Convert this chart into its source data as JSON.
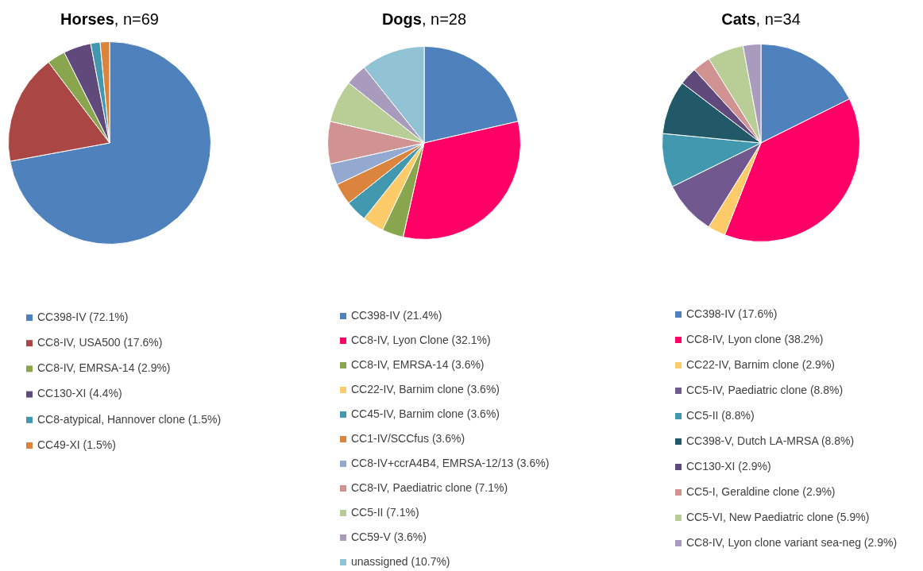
{
  "chart_data": [
    {
      "type": "pie",
      "title": "Horses, n=69",
      "categories": [
        "CC398-IV (72.1%)",
        "CC8-IV, USA500 (17.6%)",
        "CC8-IV, EMRSA-14 (2.9%)",
        "CC130-XI (4.4%)",
        "CC8-atypical, Hannover clone (1.5%)",
        "CC49-XI (1.5%)"
      ],
      "values": [
        72.1,
        17.6,
        2.9,
        4.4,
        1.5,
        1.5
      ],
      "colors": [
        "#4f81bd",
        "#aa4643",
        "#89a54e",
        "#604a7b",
        "#4198af",
        "#db843d"
      ],
      "legend": "bottom"
    },
    {
      "type": "pie",
      "title": "Dogs, n=28",
      "categories": [
        "CC398-IV (21.4%)",
        "CC8-IV, Lyon Clone (32.1%)",
        "CC8-IV, EMRSA-14 (3.6%)",
        "CC22-IV, Barnim clone (3.6%)",
        "CC45-IV, Barnim clone (3.6%)",
        "CC1-IV/SCCfus (3.6%)",
        "CC8-IV+ccrA4B4, EMRSA-12/13 (3.6%)",
        "CC8-IV, Paediatric clone (7.1%)",
        "CC5-II (7.1%)",
        "CC59-V (3.6%)",
        "unassigned (10.7%)"
      ],
      "values": [
        21.4,
        32.1,
        3.6,
        3.6,
        3.6,
        3.6,
        3.6,
        7.1,
        7.1,
        3.6,
        10.7
      ],
      "colors": [
        "#4f81bd",
        "#ff0066",
        "#89a54e",
        "#fdcb6a",
        "#4198af",
        "#db843d",
        "#93a9cf",
        "#d19392",
        "#b9cd96",
        "#a99bbd",
        "#92c3d4"
      ],
      "legend": "bottom"
    },
    {
      "type": "pie",
      "title": "Cats, n=34",
      "categories": [
        "CC398-IV (17.6%)",
        "CC8-IV, Lyon clone (38.2%)",
        "CC22-IV, Barnim clone (2.9%)",
        "CC5-IV, Paediatric clone (8.8%)",
        "CC5-II (8.8%)",
        "CC398-V, Dutch LA-MRSA (8.8%)",
        "CC130-XI (2.9%)",
        "CC5-I, Geraldine clone (2.9%)",
        "CC5-VI, New Paediatric clone (5.9%)",
        "CC8-IV, Lyon clone variant sea-neg (2.9%)"
      ],
      "values": [
        17.6,
        38.2,
        2.9,
        8.8,
        8.8,
        8.8,
        2.9,
        2.9,
        5.9,
        2.9
      ],
      "colors": [
        "#4f81bd",
        "#ff0066",
        "#fdcb6a",
        "#71588f",
        "#4198af",
        "#215968",
        "#604a7b",
        "#d19392",
        "#b9cd96",
        "#a99bbd"
      ],
      "legend": "bottom"
    }
  ]
}
